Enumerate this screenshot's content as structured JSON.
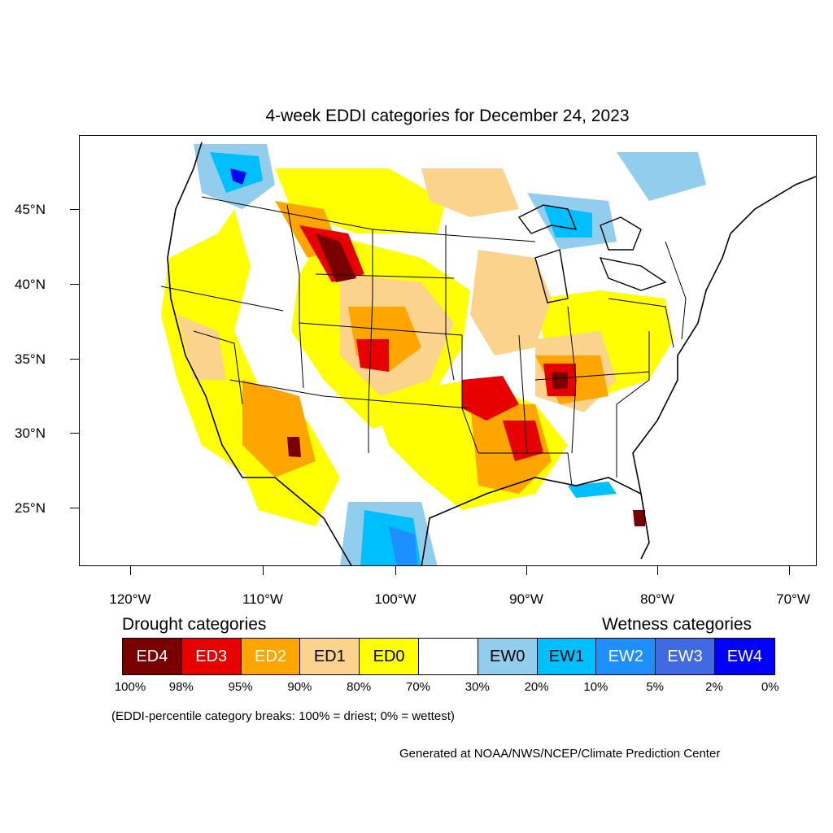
{
  "title": "4-week EDDI categories for December 24, 2023",
  "axes": {
    "latitude_labels": [
      "45°N",
      "40°N",
      "35°N",
      "30°N",
      "25°N"
    ],
    "longitude_labels": [
      "120°W",
      "110°W",
      "100°W",
      "90°W",
      "80°W",
      "70°W"
    ]
  },
  "legend": {
    "drought_heading": "Drought categories",
    "wetness_heading": "Wetness categories",
    "categories": [
      {
        "label": "ED4",
        "color": "#7a0000",
        "text_color": "#ffffff"
      },
      {
        "label": "ED3",
        "color": "#e60000",
        "text_color": "#ffffff"
      },
      {
        "label": "ED2",
        "color": "#ffa500",
        "text_color": "#ffffff"
      },
      {
        "label": "ED1",
        "color": "#fcd38c",
        "text_color": "#000000"
      },
      {
        "label": "ED0",
        "color": "#ffff00",
        "text_color": "#000000"
      },
      {
        "label": "",
        "color": "#ffffff",
        "text_color": "#000000"
      },
      {
        "label": "EW0",
        "color": "#92cdee",
        "text_color": "#000000"
      },
      {
        "label": "EW1",
        "color": "#00bfff",
        "text_color": "#000000"
      },
      {
        "label": "EW2",
        "color": "#1e8fff",
        "text_color": "#ffffff"
      },
      {
        "label": "EW3",
        "color": "#4169e1",
        "text_color": "#ffffff"
      },
      {
        "label": "EW4",
        "color": "#0000ff",
        "text_color": "#ffffff"
      }
    ],
    "breaks": [
      "100%",
      "98%",
      "95%",
      "90%",
      "80%",
      "70%",
      "30%",
      "20%",
      "10%",
      "5%",
      "2%",
      "0%"
    ]
  },
  "note": "(EDDI-percentile category breaks: 100% = driest; 0% = wettest)",
  "credit": "Generated at NOAA/NWS/NCEP/Climate Prediction Center"
}
